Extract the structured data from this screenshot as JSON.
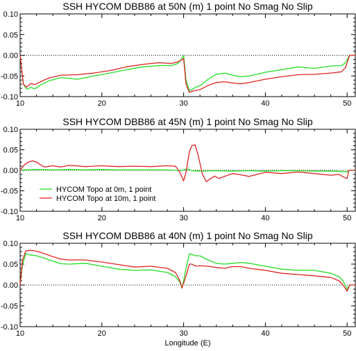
{
  "chart_data": [
    {
      "type": "line",
      "title": "SSH HYCOM DBB86 at 50N (m) 1 point No Smag No Slip",
      "xlabel": "",
      "ylabel": "",
      "xlim": [
        10,
        51
      ],
      "ylim": [
        -0.1,
        0.1
      ],
      "xticks": [
        10,
        20,
        30,
        40,
        50
      ],
      "xtick_labels": [
        "10",
        "20",
        "30",
        "40",
        "50"
      ],
      "yticks": [
        -0.1,
        -0.05,
        0,
        0.05,
        0.1
      ],
      "ytick_labels": [
        "-0.10",
        "-0.05",
        "0.00",
        "0.05",
        "0.10"
      ],
      "reference_line": 0,
      "series": [
        {
          "color": "#22dd22",
          "x": [
            10,
            10.4,
            10.8,
            11.3,
            11.8,
            12.5,
            13.5,
            15,
            17,
            19,
            21,
            23,
            25,
            27,
            28.5,
            29.3,
            29.7,
            30,
            30.3,
            30.7,
            31,
            31.5,
            32,
            33,
            34,
            35,
            36,
            37,
            38,
            39,
            40,
            42,
            44,
            46,
            48,
            49.3,
            49.8,
            50.3,
            51
          ],
          "y": [
            0,
            -0.07,
            -0.082,
            -0.078,
            -0.081,
            -0.072,
            -0.062,
            -0.054,
            -0.058,
            -0.05,
            -0.043,
            -0.035,
            -0.028,
            -0.025,
            -0.025,
            -0.02,
            -0.01,
            -0.001,
            -0.06,
            -0.085,
            -0.083,
            -0.077,
            -0.074,
            -0.058,
            -0.046,
            -0.043,
            -0.048,
            -0.052,
            -0.05,
            -0.046,
            -0.041,
            -0.035,
            -0.028,
            -0.032,
            -0.026,
            -0.025,
            -0.018,
            0,
            0
          ]
        },
        {
          "color": "#dd2222",
          "x": [
            10,
            10.4,
            10.8,
            11.3,
            11.8,
            12.5,
            13.5,
            15,
            17,
            19,
            21,
            23,
            25,
            27,
            28.5,
            29.3,
            29.7,
            30,
            30.3,
            30.7,
            31,
            31.5,
            32,
            33,
            34,
            35,
            36,
            37,
            38,
            39,
            40,
            42,
            44,
            46,
            48,
            49.3,
            49.8,
            50.3,
            51
          ],
          "y": [
            0,
            -0.07,
            -0.077,
            -0.068,
            -0.071,
            -0.064,
            -0.055,
            -0.048,
            -0.047,
            -0.043,
            -0.037,
            -0.028,
            -0.022,
            -0.018,
            -0.02,
            -0.016,
            -0.012,
            -0.008,
            -0.07,
            -0.09,
            -0.087,
            -0.085,
            -0.083,
            -0.073,
            -0.066,
            -0.064,
            -0.067,
            -0.069,
            -0.066,
            -0.062,
            -0.058,
            -0.052,
            -0.047,
            -0.046,
            -0.043,
            -0.04,
            -0.03,
            0,
            0
          ]
        }
      ]
    },
    {
      "type": "line",
      "title": "SSH HYCOM DBB86 at 45N (m) 1 point No Smag No Slip",
      "xlabel": "",
      "ylabel": "",
      "xlim": [
        10,
        51
      ],
      "ylim": [
        -0.1,
        0.1
      ],
      "xticks": [
        10,
        20,
        30,
        40,
        50
      ],
      "xtick_labels": [
        "10",
        "20",
        "30",
        "40",
        "50"
      ],
      "yticks": [
        -0.1,
        -0.05,
        0,
        0.05,
        0.1
      ],
      "ytick_labels": [
        "-0.10",
        "-0.05",
        "0.00",
        "0.05",
        "0.10"
      ],
      "reference_line": 0,
      "legend": {
        "placement": "bottom-left",
        "entries": [
          {
            "label": "HYCOM Topo at 0m, 1 point",
            "color": "#22dd22"
          },
          {
            "label": "HYCOM Topo at 10m, 1 point",
            "color": "#dd2222"
          }
        ]
      },
      "series": [
        {
          "color": "#22dd22",
          "x": [
            10,
            10.5,
            12,
            14,
            16,
            18,
            20,
            22,
            24,
            26,
            28,
            29,
            29.6,
            30,
            30.5,
            31,
            32,
            34,
            36,
            38,
            40,
            42,
            44,
            46,
            48,
            49.5,
            50,
            50.3,
            51
          ],
          "y": [
            0,
            0.001,
            0.002,
            0.001,
            0.002,
            0.001,
            0.002,
            0.001,
            0.001,
            0.001,
            0.001,
            0,
            -0.001,
            0.001,
            0.003,
            -0.001,
            -0.002,
            -0.001,
            -0.002,
            -0.001,
            -0.002,
            -0.001,
            -0.001,
            -0.002,
            -0.002,
            -0.003,
            -0.004,
            0,
            0
          ]
        },
        {
          "color": "#dd2222",
          "x": [
            10,
            10.5,
            11,
            11.5,
            12,
            12.5,
            13,
            14,
            15,
            16,
            18,
            20,
            22,
            24,
            26,
            28,
            29,
            29.5,
            30,
            30.3,
            30.7,
            31,
            31.4,
            31.8,
            32.3,
            32.8,
            33.3,
            33.8,
            34.3,
            35,
            36,
            37,
            38,
            39,
            40,
            42,
            44,
            46,
            48,
            49,
            49.7,
            50,
            50.2,
            51
          ],
          "y": [
            0,
            0.013,
            0.02,
            0.023,
            0.02,
            0.013,
            0.008,
            0.011,
            0.008,
            0.012,
            0.009,
            0.011,
            0.009,
            0.01,
            0.009,
            0.011,
            0.01,
            -0.003,
            -0.026,
            -0.005,
            0.045,
            0.06,
            0.062,
            0.035,
            -0.01,
            -0.028,
            -0.02,
            -0.014,
            -0.02,
            -0.015,
            -0.008,
            -0.011,
            -0.015,
            -0.01,
            -0.005,
            -0.008,
            -0.004,
            -0.008,
            -0.012,
            -0.01,
            -0.018,
            -0.02,
            0,
            0
          ]
        }
      ]
    },
    {
      "type": "line",
      "title": "SSH HYCOM DBB86 at 40N (m) 1 point No Smag No Slip",
      "xlabel": "Longitude (E)",
      "ylabel": "",
      "xlim": [
        10,
        51
      ],
      "ylim": [
        -0.1,
        0.1
      ],
      "xticks": [
        10,
        20,
        30,
        40,
        50
      ],
      "xtick_labels": [
        "10",
        "20",
        "30",
        "40",
        "50"
      ],
      "yticks": [
        -0.1,
        -0.05,
        0,
        0.05,
        0.1
      ],
      "ytick_labels": [
        "-0.10",
        "-0.05",
        "0.00",
        "0.05",
        "0.10"
      ],
      "reference_line": 0,
      "series": [
        {
          "color": "#22dd22",
          "x": [
            10,
            10.3,
            10.7,
            11.2,
            12,
            13,
            14,
            15,
            16,
            18,
            20,
            22,
            24,
            26,
            28,
            29,
            29.5,
            29.8,
            30.3,
            30.7,
            31,
            31.5,
            32,
            33,
            34,
            35,
            36,
            37,
            38,
            40,
            42,
            44,
            46,
            48,
            49,
            49.5,
            50,
            50.3,
            51
          ],
          "y": [
            0,
            0.05,
            0.075,
            0.072,
            0.07,
            0.064,
            0.057,
            0.051,
            0.05,
            0.052,
            0.045,
            0.038,
            0.035,
            0.036,
            0.03,
            0.02,
            0.008,
            -0.008,
            0.04,
            0.075,
            0.073,
            0.07,
            0.07,
            0.06,
            0.052,
            0.05,
            0.052,
            0.054,
            0.052,
            0.045,
            0.038,
            0.035,
            0.035,
            0.028,
            0.02,
            0.01,
            -0.01,
            0,
            0
          ]
        },
        {
          "color": "#dd2222",
          "x": [
            10,
            10.3,
            10.7,
            11.2,
            12,
            13,
            14,
            15,
            16,
            18,
            20,
            22,
            24,
            26,
            28,
            29,
            29.5,
            29.8,
            30.3,
            30.7,
            31,
            31.5,
            32,
            33,
            34,
            35,
            36,
            37,
            38,
            40,
            42,
            44,
            46,
            48,
            49,
            49.5,
            50,
            50.3,
            51
          ],
          "y": [
            0,
            0.06,
            0.082,
            0.083,
            0.081,
            0.075,
            0.068,
            0.062,
            0.06,
            0.06,
            0.055,
            0.049,
            0.043,
            0.045,
            0.04,
            0.03,
            0.012,
            -0.007,
            0.022,
            0.05,
            0.05,
            0.045,
            0.046,
            0.045,
            0.042,
            0.04,
            0.044,
            0.044,
            0.04,
            0.035,
            0.028,
            0.025,
            0.022,
            0.018,
            0.01,
            0,
            -0.015,
            0,
            0
          ]
        }
      ]
    }
  ]
}
